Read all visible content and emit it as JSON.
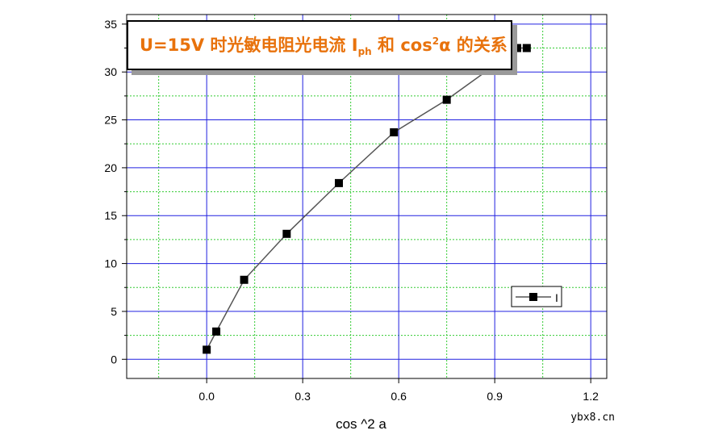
{
  "chart_data": {
    "type": "line",
    "title": {
      "prefix": "U=15V 时光敏电阻光电流 I",
      "subscript": "ph",
      "middle": " 和 cos",
      "superscript": "2",
      "suffix": "α 的关系"
    },
    "xlabel": "cos ^2 a",
    "ylabel": "",
    "xlim": [
      -0.25,
      1.25
    ],
    "ylim": [
      -2,
      36
    ],
    "x_ticks": [
      0.0,
      0.3,
      0.6,
      0.9,
      1.2
    ],
    "x_tick_labels": [
      "0.0",
      "0.3",
      "0.6",
      "0.9",
      "1.2"
    ],
    "y_ticks": [
      0,
      5,
      10,
      15,
      20,
      25,
      30,
      35
    ],
    "y_tick_labels": [
      "0",
      "5",
      "10",
      "15",
      "20",
      "25",
      "30",
      "35"
    ],
    "grid": true,
    "minor_grid": true,
    "legend_position": "right",
    "series": [
      {
        "name": "I",
        "marker": "square",
        "x": [
          0.0,
          0.03,
          0.117,
          0.25,
          0.413,
          0.585,
          0.75,
          0.883,
          0.97,
          1.0
        ],
        "y": [
          1.0,
          2.9,
          8.3,
          13.1,
          18.4,
          23.7,
          27.1,
          30.3,
          32.5,
          32.5
        ]
      }
    ],
    "colors": {
      "major_grid": "#2020e0",
      "minor_grid": "#33cc33",
      "line": "#555555",
      "marker": "#000000",
      "title": "#e8720c"
    }
  },
  "watermark": "ybx8.cn"
}
